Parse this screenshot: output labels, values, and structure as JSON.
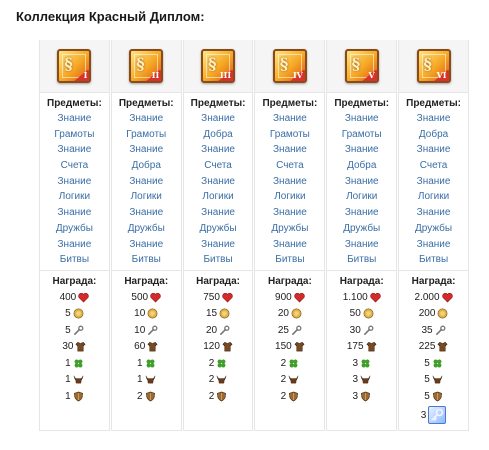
{
  "title": "Коллекция Красный Диплом:",
  "columns": [
    {
      "badge": "I",
      "items_header": "Предметы:",
      "items": [
        "Знание",
        "Грамоты",
        "Знание",
        "Счета",
        "Знание",
        "Логики",
        "Знание",
        "Дружбы",
        "Знание",
        "Битвы"
      ],
      "rewards_header": "Награда:",
      "rewards": [
        {
          "amount": "400",
          "icon": "heart-icon"
        },
        {
          "amount": "5",
          "icon": "coin-icon"
        },
        {
          "amount": "5",
          "icon": "wrench-icon"
        },
        {
          "amount": "30",
          "icon": "shirt-icon"
        },
        {
          "amount": "1",
          "icon": "clover-icon"
        },
        {
          "amount": "1",
          "icon": "bull-icon"
        },
        {
          "amount": "1",
          "icon": "shield-icon"
        }
      ]
    },
    {
      "badge": "II",
      "items_header": "Предметы:",
      "items": [
        "Знание",
        "Грамоты",
        "Знание",
        "Добра",
        "Знание",
        "Логики",
        "Знание",
        "Дружбы",
        "Знание",
        "Битвы"
      ],
      "rewards_header": "Награда:",
      "rewards": [
        {
          "amount": "500",
          "icon": "heart-icon"
        },
        {
          "amount": "10",
          "icon": "coin-icon"
        },
        {
          "amount": "10",
          "icon": "wrench-icon"
        },
        {
          "amount": "60",
          "icon": "shirt-icon"
        },
        {
          "amount": "1",
          "icon": "clover-icon"
        },
        {
          "amount": "1",
          "icon": "bull-icon"
        },
        {
          "amount": "2",
          "icon": "shield-icon"
        }
      ]
    },
    {
      "badge": "III",
      "items_header": "Предметы:",
      "items": [
        "Знание",
        "Добра",
        "Знание",
        "Счета",
        "Знание",
        "Логики",
        "Знание",
        "Дружбы",
        "Знание",
        "Битвы"
      ],
      "rewards_header": "Награда:",
      "rewards": [
        {
          "amount": "750",
          "icon": "heart-icon"
        },
        {
          "amount": "15",
          "icon": "coin-icon"
        },
        {
          "amount": "20",
          "icon": "wrench-icon"
        },
        {
          "amount": "120",
          "icon": "shirt-icon"
        },
        {
          "amount": "2",
          "icon": "clover-icon"
        },
        {
          "amount": "2",
          "icon": "bull-icon"
        },
        {
          "amount": "2",
          "icon": "shield-icon"
        }
      ]
    },
    {
      "badge": "IV",
      "items_header": "Предметы:",
      "items": [
        "Знание",
        "Грамоты",
        "Знание",
        "Счета",
        "Знание",
        "Логики",
        "Знание",
        "Дружбы",
        "Знание",
        "Битвы"
      ],
      "rewards_header": "Награда:",
      "rewards": [
        {
          "amount": "900",
          "icon": "heart-icon"
        },
        {
          "amount": "20",
          "icon": "coin-icon"
        },
        {
          "amount": "25",
          "icon": "wrench-icon"
        },
        {
          "amount": "150",
          "icon": "shirt-icon"
        },
        {
          "amount": "2",
          "icon": "clover-icon"
        },
        {
          "amount": "2",
          "icon": "bull-icon"
        },
        {
          "amount": "2",
          "icon": "shield-icon"
        }
      ]
    },
    {
      "badge": "V",
      "items_header": "Предметы:",
      "items": [
        "Знание",
        "Грамоты",
        "Знание",
        "Добра",
        "Знание",
        "Логики",
        "Знание",
        "Дружбы",
        "Знание",
        "Битвы"
      ],
      "rewards_header": "Награда:",
      "rewards": [
        {
          "amount": "1.100",
          "icon": "heart-icon"
        },
        {
          "amount": "50",
          "icon": "coin-icon"
        },
        {
          "amount": "30",
          "icon": "wrench-icon"
        },
        {
          "amount": "175",
          "icon": "shirt-icon"
        },
        {
          "amount": "3",
          "icon": "clover-icon"
        },
        {
          "amount": "3",
          "icon": "bull-icon"
        },
        {
          "amount": "3",
          "icon": "shield-icon"
        }
      ]
    },
    {
      "badge": "VI",
      "items_header": "Предметы:",
      "items": [
        "Знание",
        "Добра",
        "Знание",
        "Счета",
        "Знание",
        "Логики",
        "Знание",
        "Дружбы",
        "Знание",
        "Битвы"
      ],
      "rewards_header": "Награда:",
      "rewards": [
        {
          "amount": "2.000",
          "icon": "heart-icon"
        },
        {
          "amount": "200",
          "icon": "coin-icon"
        },
        {
          "amount": "35",
          "icon": "wrench-icon"
        },
        {
          "amount": "225",
          "icon": "shirt-icon"
        },
        {
          "amount": "5",
          "icon": "clover-icon"
        },
        {
          "amount": "5",
          "icon": "bull-icon"
        },
        {
          "amount": "5",
          "icon": "shield-icon"
        },
        {
          "amount": "3",
          "icon": "key-icon"
        }
      ]
    }
  ],
  "colors": {
    "link": "#3a6ea5",
    "heart": "#d42a2a",
    "coin": "#d9a441",
    "clover": "#3f9f2a",
    "bull": "#6b3a1a",
    "shield": "#8a5a2a"
  }
}
